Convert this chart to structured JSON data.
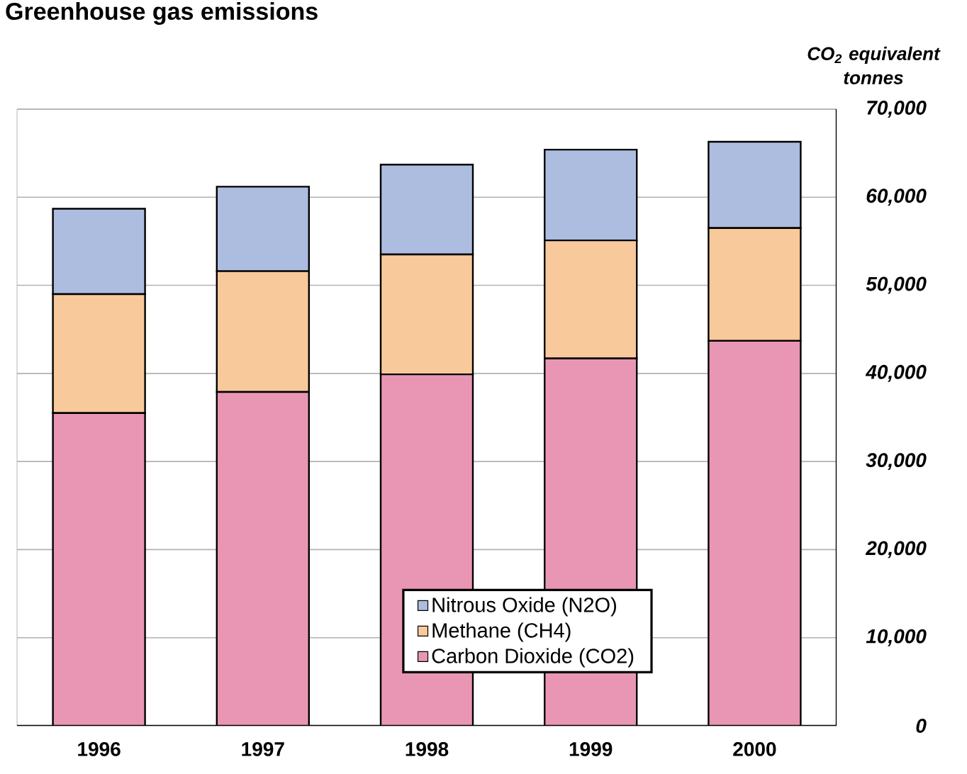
{
  "chart_data": {
    "type": "bar",
    "stacked": true,
    "title": "Greenhouse gas emissions",
    "ylabel": "CO$_{2}$ equivalent tonnes",
    "categories": [
      "1996",
      "1997",
      "1998",
      "1999",
      "2000"
    ],
    "series": [
      {
        "name": "Carbon Dioxide (CO2)",
        "color": "#e996b4",
        "values": [
          35500,
          37900,
          39900,
          41700,
          43700
        ]
      },
      {
        "name": "Methane (CH4)",
        "color": "#f8c99a",
        "values": [
          13500,
          13700,
          13600,
          13400,
          12800
        ]
      },
      {
        "name": "Nitrous Oxide (N2O)",
        "color": "#adbde0",
        "values": [
          9700,
          9600,
          10200,
          10300,
          9800
        ]
      }
    ],
    "ylim": [
      0,
      70000
    ],
    "yticks": [
      0,
      {
        "value": 10000,
        "label": "10,000"
      },
      {
        "value": 20000,
        "label": "20,000"
      },
      {
        "value": 30000,
        "label": "30,000"
      },
      {
        "value": 40000,
        "label": "40,000"
      },
      {
        "value": 50000,
        "label": "50,000"
      },
      {
        "value": 60000,
        "label": "60,000"
      },
      {
        "value": 70000,
        "label": "70,000"
      }
    ],
    "grid": "y",
    "legend": "bottom"
  }
}
